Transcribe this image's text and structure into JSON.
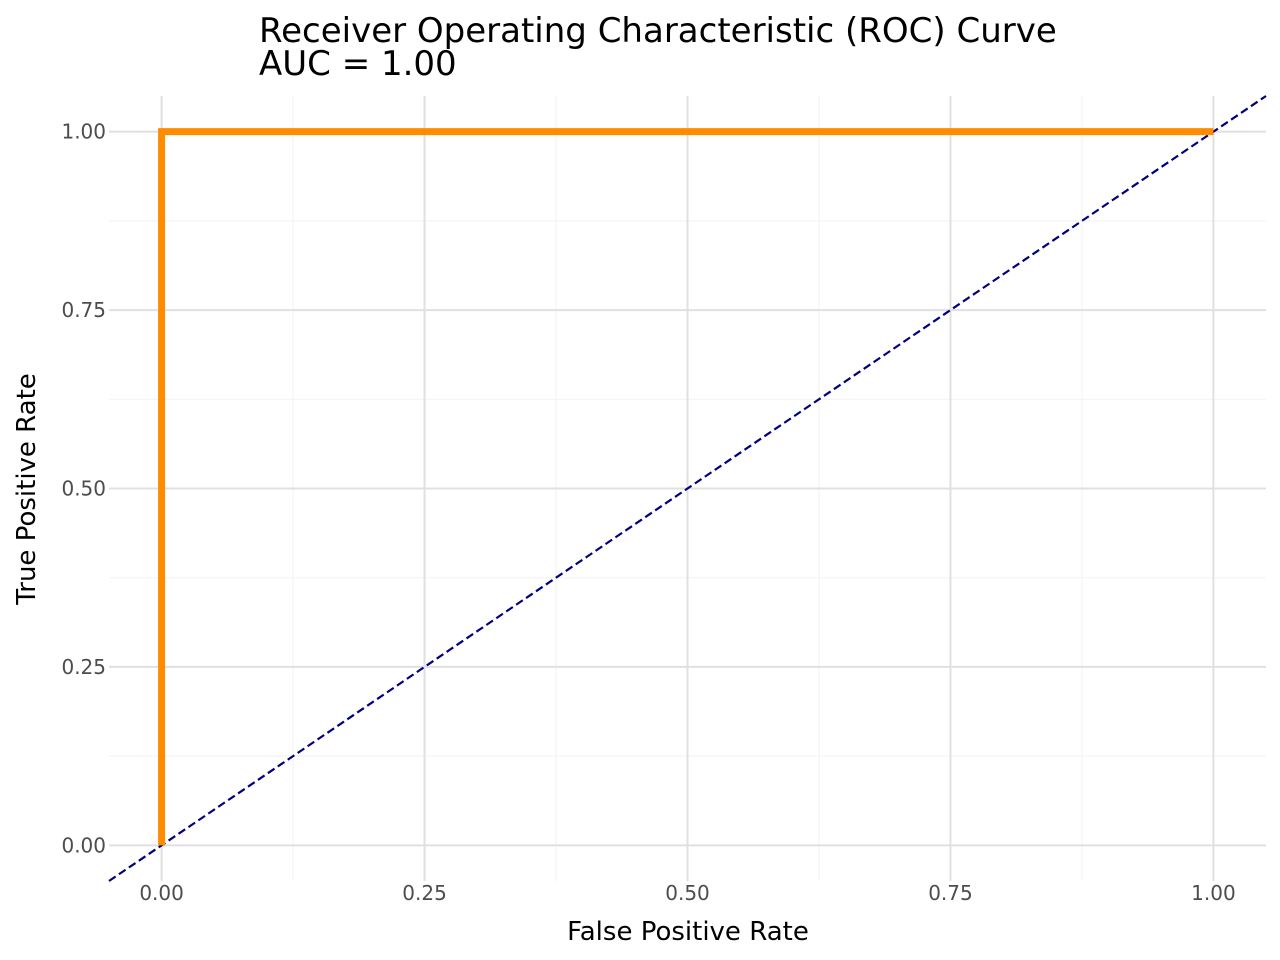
{
  "chart_data": {
    "type": "line",
    "title": "Receiver Operating Characteristic (ROC) Curve",
    "subtitle": "AUC = 1.00",
    "xlabel": "False Positive Rate",
    "ylabel": "True Positive Rate",
    "xlim": [
      -0.05,
      1.05
    ],
    "ylim": [
      -0.05,
      1.05
    ],
    "x_ticks": [
      0,
      0.25,
      0.5,
      0.75,
      1
    ],
    "x_tick_labels": [
      "0.00",
      "0.25",
      "0.50",
      "0.75",
      "1.00"
    ],
    "y_ticks": [
      0,
      0.25,
      0.5,
      0.75,
      1
    ],
    "y_tick_labels": [
      "0.00",
      "0.25",
      "0.50",
      "0.75",
      "1.00"
    ],
    "grid": true,
    "series": [
      {
        "style": "solid",
        "color": "#ff8c00",
        "x": [
          0,
          0,
          1
        ],
        "y": [
          0,
          1,
          1
        ]
      },
      {
        "style": "dashed",
        "color": "#000080",
        "x": [
          -0.05,
          1.05
        ],
        "y": [
          -0.05,
          1.05
        ]
      }
    ]
  }
}
